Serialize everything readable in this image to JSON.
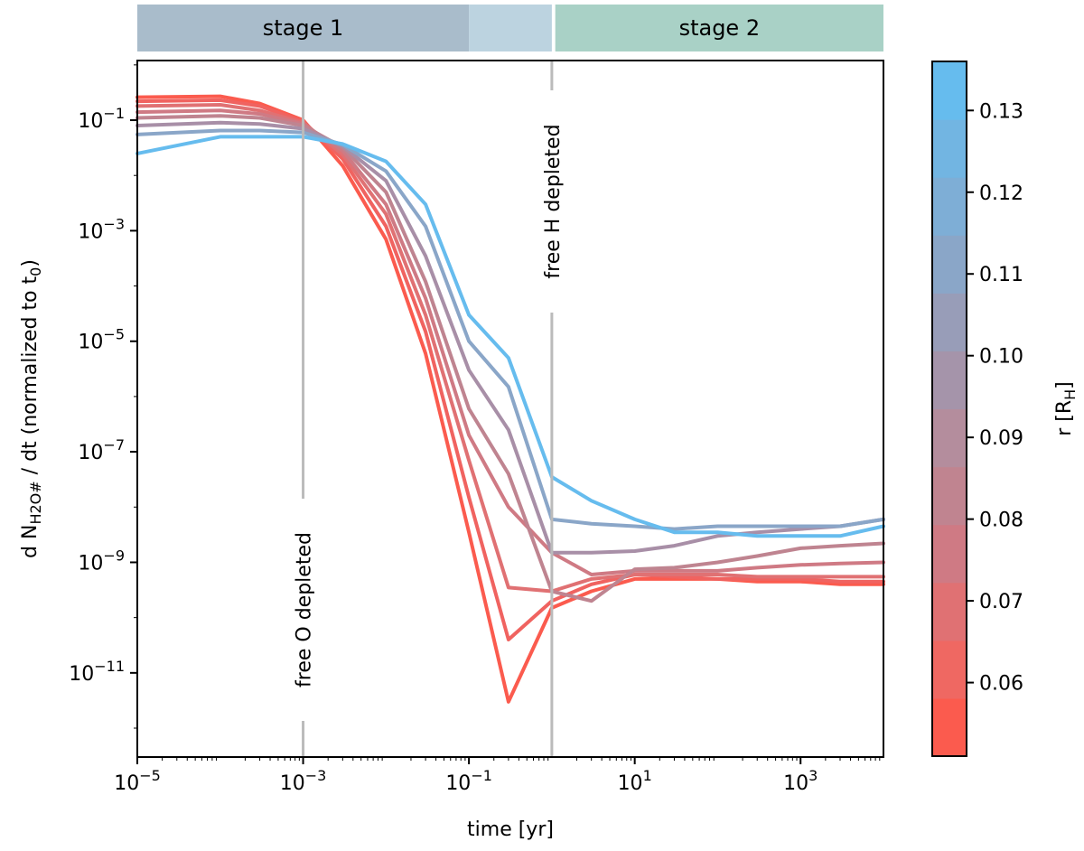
{
  "chart_data": {
    "type": "line",
    "xlabel": "time [yr]",
    "ylabel": {
      "prefix": "d N",
      "subscript": "H2O#",
      "middle": " / dt   (normalized to t",
      "subscript2": "0",
      "suffix": ")"
    },
    "x_scale": "log",
    "y_scale": "log",
    "xlim": [
      1e-05,
      10000.0
    ],
    "ylim": [
      3e-13,
      1.2
    ],
    "x_ticks": [
      {
        "value": 1e-05,
        "base": "10",
        "exp": "−5"
      },
      {
        "value": 0.001,
        "base": "10",
        "exp": "−3"
      },
      {
        "value": 0.1,
        "base": "10",
        "exp": "−1"
      },
      {
        "value": 10.0,
        "base": "10",
        "exp": "1"
      },
      {
        "value": 1000.0,
        "base": "10",
        "exp": "3"
      }
    ],
    "y_ticks": [
      {
        "value": 0.1,
        "base": "10",
        "exp": "−1"
      },
      {
        "value": 0.001,
        "base": "10",
        "exp": "−3"
      },
      {
        "value": 1e-05,
        "base": "10",
        "exp": "−5"
      },
      {
        "value": 1e-07,
        "base": "10",
        "exp": "−7"
      },
      {
        "value": 1e-09,
        "base": "10",
        "exp": "−9"
      },
      {
        "value": 1e-11,
        "base": "10",
        "exp": "−11"
      }
    ],
    "grid": false,
    "stages": [
      {
        "label": "stage 1",
        "x_start": 1e-05,
        "x_end": 0.1,
        "color": "#a9bccb"
      },
      {
        "label": "",
        "x_start": 0.1,
        "x_end": 1,
        "color": "#bcd3e0"
      },
      {
        "label": "stage 2",
        "x_start": 1.1,
        "x_end": 10000.0,
        "color": "#a9d1c6"
      }
    ],
    "vlines": [
      {
        "x": 0.001,
        "label": "free O depleted",
        "color": "#bbbbbb"
      },
      {
        "x": 1,
        "label": "free H depleted",
        "color": "#bbbbbb"
      }
    ],
    "colorbar": {
      "label_prefix": "r [R",
      "label_sub": "H",
      "label_suffix": "]",
      "min": 0.051,
      "max": 0.136,
      "ticks": [
        "0.06",
        "0.07",
        "0.08",
        "0.09",
        "0.10",
        "0.11",
        "0.12",
        "0.13"
      ],
      "tick_values": [
        0.06,
        0.07,
        0.08,
        0.09,
        0.1,
        0.11,
        0.12,
        0.13
      ],
      "bands": [
        "#fb5b4e",
        "#ef6862",
        "#e07173",
        "#cf7a84",
        "#c08490",
        "#b48d9d",
        "#a594aa",
        "#989db8",
        "#8aa6c8",
        "#7eaed6",
        "#72b5e2",
        "#66bcee"
      ]
    },
    "x": [
      1e-05,
      0.0001,
      0.0003,
      0.001,
      0.003,
      0.01,
      0.03,
      0.1,
      0.3,
      1,
      3,
      10,
      30,
      100,
      300,
      1000,
      3000,
      10000
    ],
    "series": [
      {
        "r": 0.055,
        "color": "#fb5b4e",
        "values": [
          0.26,
          0.27,
          0.2,
          0.1,
          0.015,
          0.0007,
          6e-06,
          3.5e-09,
          3e-12,
          1.5e-10,
          3e-10,
          5e-10,
          5e-10,
          5e-10,
          4.5e-10,
          4.5e-10,
          4e-10,
          4e-10
        ]
      },
      {
        "r": 0.06,
        "color": "#f06360",
        "values": [
          0.22,
          0.23,
          0.18,
          0.095,
          0.02,
          0.0012,
          1.5e-05,
          1.5e-08,
          4e-11,
          2e-10,
          4e-10,
          6e-10,
          5.5e-10,
          5e-10,
          5e-10,
          5e-10,
          4.5e-10,
          4.5e-10
        ]
      },
      {
        "r": 0.07,
        "color": "#e07173",
        "values": [
          0.18,
          0.19,
          0.15,
          0.09,
          0.024,
          0.002,
          3e-05,
          7e-08,
          3.5e-10,
          3e-10,
          5e-10,
          6e-10,
          6e-10,
          6e-10,
          5.5e-10,
          5.5e-10,
          5.5e-10,
          5.5e-10
        ]
      },
      {
        "r": 0.08,
        "color": "#cf7a84",
        "values": [
          0.14,
          0.15,
          0.13,
          0.085,
          0.028,
          0.003,
          6e-05,
          2e-07,
          1e-08,
          1.5e-09,
          6e-10,
          7e-10,
          7e-10,
          7e-10,
          8e-10,
          9e-10,
          9.5e-10,
          1e-09
        ]
      },
      {
        "r": 0.09,
        "color": "#bf8490",
        "values": [
          0.11,
          0.12,
          0.11,
          0.08,
          0.032,
          0.005,
          0.00012,
          6e-07,
          4e-08,
          3e-10,
          2e-10,
          7.5e-10,
          8e-10,
          1e-09,
          1.3e-09,
          1.8e-09,
          2e-09,
          2.2e-09
        ]
      },
      {
        "r": 0.1,
        "color": "#a88fa7",
        "values": [
          0.08,
          0.09,
          0.085,
          0.07,
          0.034,
          0.008,
          0.00035,
          3e-06,
          2.5e-07,
          1.5e-09,
          1.5e-09,
          1.6e-09,
          2e-09,
          3e-09,
          3.5e-09,
          4e-09,
          4.5e-09,
          6e-09
        ]
      },
      {
        "r": 0.115,
        "color": "#8aa6c8",
        "values": [
          0.055,
          0.065,
          0.065,
          0.06,
          0.036,
          0.012,
          0.0012,
          1e-05,
          1.5e-06,
          6e-09,
          5e-09,
          4.5e-09,
          4e-09,
          4.5e-09,
          4.5e-09,
          4.5e-09,
          4.5e-09,
          6e-09
        ]
      },
      {
        "r": 0.13,
        "color": "#66bcee",
        "values": [
          0.025,
          0.05,
          0.05,
          0.05,
          0.037,
          0.018,
          0.003,
          3e-05,
          5e-06,
          3.5e-08,
          1.3e-08,
          6e-09,
          3.5e-09,
          3.5e-09,
          3e-09,
          3e-09,
          3e-09,
          4.5e-09
        ]
      }
    ]
  }
}
